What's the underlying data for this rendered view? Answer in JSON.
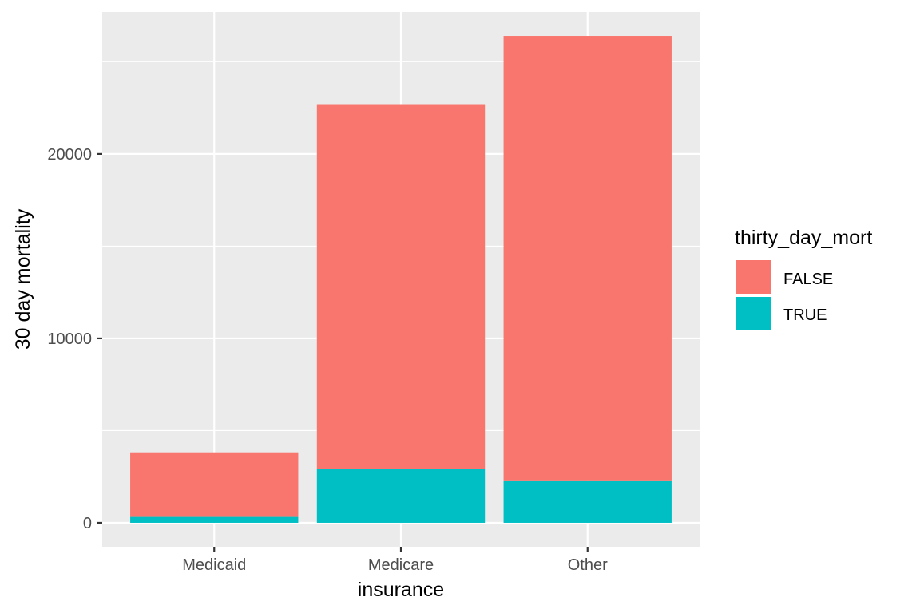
{
  "chart_data": {
    "type": "bar",
    "stacked": true,
    "categories": [
      "Medicaid",
      "Medicare",
      "Other"
    ],
    "series": [
      {
        "name": "FALSE",
        "values": [
          3500,
          19800,
          24100
        ],
        "color": "#F8766D"
      },
      {
        "name": "TRUE",
        "values": [
          320,
          2900,
          2300
        ],
        "color": "#00BFC4"
      }
    ],
    "xlabel": "insurance",
    "ylabel": "30 day mortality",
    "ylim": [
      -1300,
      27700
    ],
    "yticks": [
      0,
      10000,
      20000
    ],
    "ytick_labels": [
      "0",
      "10000",
      "20000"
    ],
    "legend": {
      "title": "thirty_day_mort",
      "position": "right"
    },
    "grid": true,
    "panel_background": "#EBEBEB"
  }
}
